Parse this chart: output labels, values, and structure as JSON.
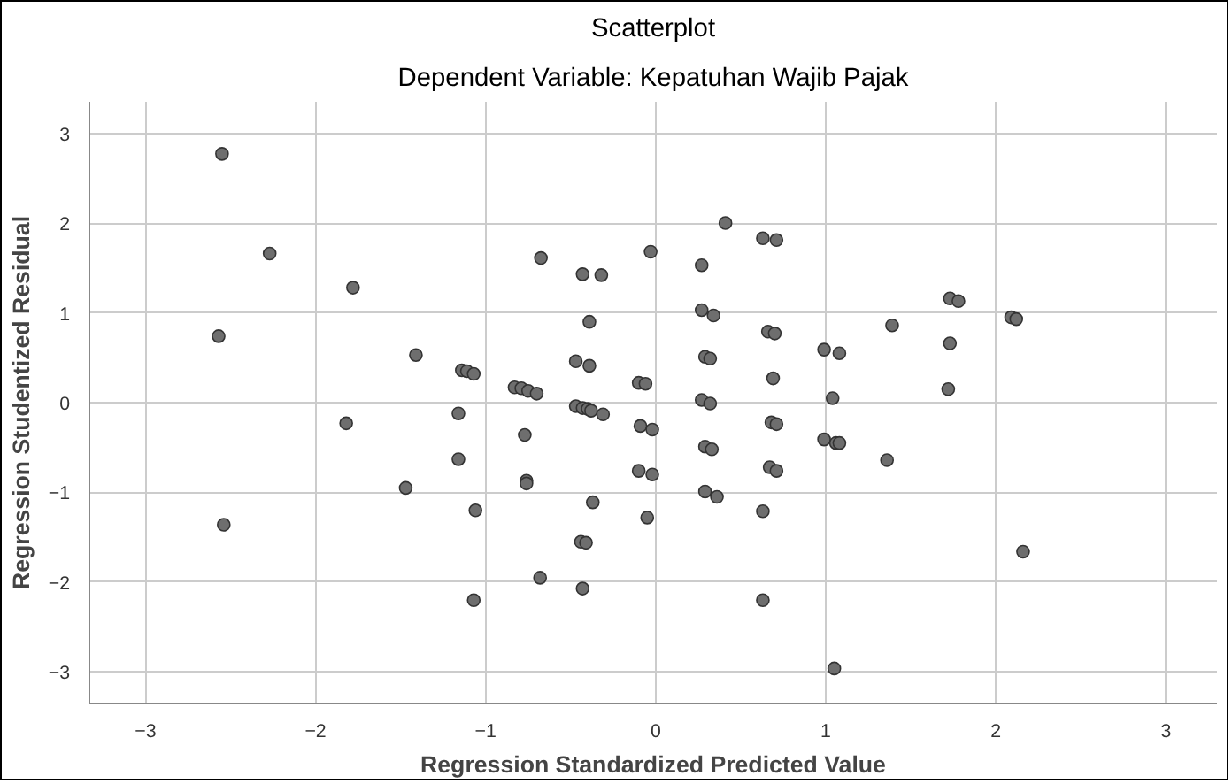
{
  "chart_data": {
    "type": "scatter",
    "title": "Scatterplot",
    "subtitle": "Dependent Variable: Kepatuhan Wajib Pajak",
    "xlabel": "Regression Standardized Predicted Value",
    "ylabel": "Regression Studentized Residual",
    "xlim": [
      -3.33,
      3.3
    ],
    "ylim": [
      -3.35,
      3.35
    ],
    "xticks": [
      -3,
      -2,
      -1,
      0,
      1,
      2,
      3
    ],
    "yticks": [
      -3,
      -2,
      -1,
      0,
      1,
      2,
      3
    ],
    "grid": true,
    "marker": "circle",
    "series": [
      {
        "color": "#6e6e6e",
        "x": [
          -2.55,
          -2.27,
          -2.57,
          -1.78,
          -1.41,
          -1.14,
          -1.11,
          -1.07,
          -0.83,
          -0.79,
          -0.75,
          -0.7,
          -0.675,
          -0.43,
          -0.32,
          -0.39,
          -0.47,
          -0.39,
          -0.47,
          -0.43,
          -0.4,
          -0.38,
          -0.31,
          -0.1,
          -0.06,
          -1.16,
          -1.82,
          -0.77,
          0.41,
          0.63,
          0.71,
          -0.03,
          0.27,
          1.73,
          1.78,
          2.09,
          2.12,
          0.27,
          0.34,
          1.39,
          1.73,
          0.66,
          0.7,
          0.99,
          1.08,
          0.29,
          0.32,
          0.69,
          1.72,
          1.04,
          0.27,
          0.32,
          -0.09,
          -0.02,
          0.68,
          0.71,
          0.99,
          1.06,
          1.08,
          0.29,
          0.33,
          -0.1,
          -0.02,
          0.67,
          0.71,
          1.36,
          0.29,
          0.36,
          0.63,
          -0.05,
          2.16,
          0.63,
          1.05,
          -1.16,
          -1.47,
          -0.76,
          -0.76,
          -1.06,
          -0.37,
          -2.54,
          -0.44,
          -0.41,
          -0.68,
          -0.43,
          -1.07
        ],
        "values": [
          2.77,
          1.66,
          0.74,
          1.28,
          0.53,
          0.36,
          0.35,
          0.32,
          0.17,
          0.16,
          0.13,
          0.1,
          1.61,
          1.43,
          1.42,
          0.9,
          0.46,
          0.41,
          -0.04,
          -0.06,
          -0.07,
          -0.09,
          -0.13,
          0.22,
          0.21,
          -0.12,
          -0.23,
          -0.36,
          2.0,
          1.83,
          1.81,
          1.68,
          1.53,
          1.16,
          1.13,
          0.95,
          0.93,
          1.03,
          0.97,
          0.86,
          0.66,
          0.79,
          0.77,
          0.59,
          0.55,
          0.51,
          0.49,
          0.27,
          0.15,
          0.05,
          0.03,
          -0.01,
          -0.26,
          -0.3,
          -0.22,
          -0.24,
          -0.41,
          -0.45,
          -0.45,
          -0.49,
          -0.52,
          -0.76,
          -0.8,
          -0.72,
          -0.76,
          -0.64,
          -0.99,
          -1.05,
          -1.21,
          -1.28,
          -1.66,
          -2.2,
          -2.96,
          -0.63,
          -0.95,
          -0.87,
          -0.9,
          -1.2,
          -1.11,
          -1.36,
          -1.55,
          -1.56,
          -1.95,
          -2.07,
          -2.2
        ]
      }
    ]
  }
}
